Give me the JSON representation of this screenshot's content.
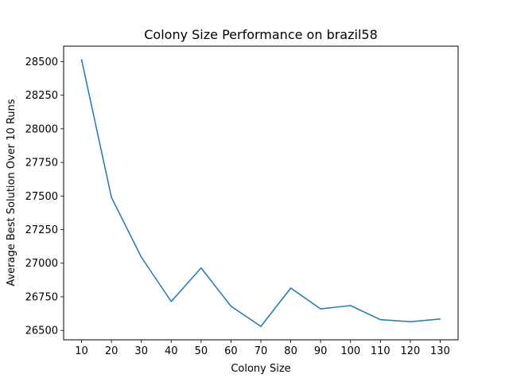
{
  "chart_data": {
    "type": "line",
    "title": "Colony Size Performance on brazil58",
    "xlabel": "Colony Size",
    "ylabel": "Average Best Solution Over 10 Runs",
    "x": [
      10,
      20,
      30,
      40,
      50,
      60,
      70,
      80,
      90,
      100,
      110,
      120,
      130
    ],
    "series": [
      {
        "values": [
          28515,
          27490,
          27045,
          26715,
          26965,
          26680,
          26530,
          26815,
          26660,
          26685,
          26580,
          26565,
          26585
        ],
        "color": "#1f77b4"
      }
    ],
    "xticks": [
      "10",
      "20",
      "30",
      "40",
      "50",
      "60",
      "70",
      "80",
      "90",
      "100",
      "110",
      "120",
      "130"
    ],
    "yticks": [
      "26500",
      "26750",
      "27000",
      "27250",
      "27500",
      "27750",
      "28000",
      "28250",
      "28500"
    ],
    "xlim": [
      4,
      136
    ],
    "ylim": [
      26430,
      28615
    ],
    "grid": false
  }
}
